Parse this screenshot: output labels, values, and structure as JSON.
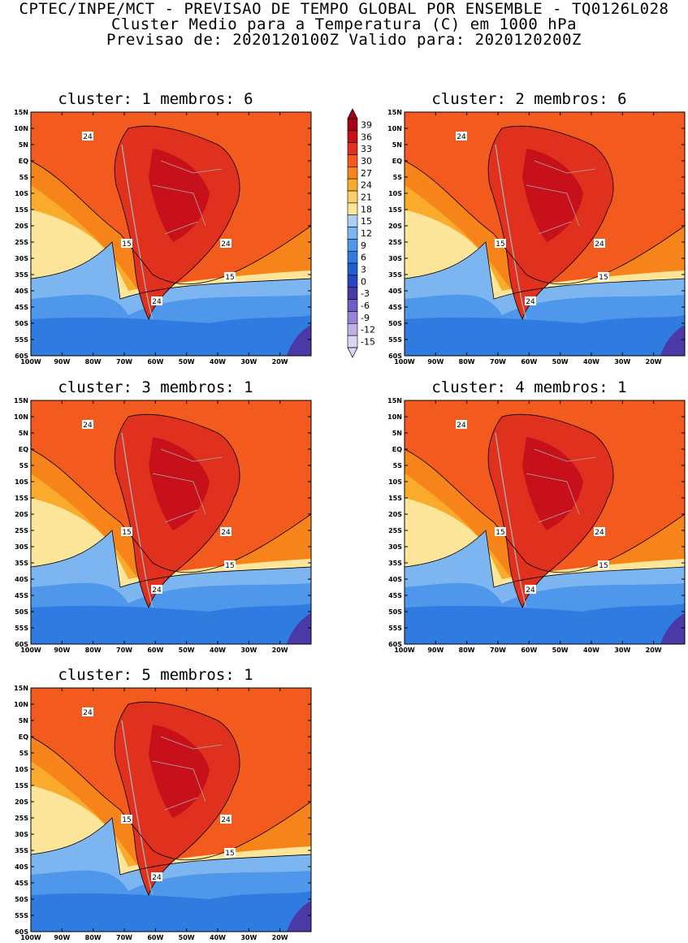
{
  "header": {
    "line1": "CPTEC/INPE/MCT - PREVISAO DE TEMPO GLOBAL POR ENSEMBLE - TQ0126L028",
    "line2": "Cluster Medio para a Temperatura (C) em 1000 hPa",
    "line3": "Previsao de: 2020120100Z   Valido para: 2020120200Z"
  },
  "panels": [
    {
      "title": "cluster: 1   membros: 6"
    },
    {
      "title": "cluster: 2   membros: 6"
    },
    {
      "title": "cluster: 3   membros: 1"
    },
    {
      "title": "cluster: 4   membros: 1"
    },
    {
      "title": "cluster: 5   membros: 1"
    }
  ],
  "axes": {
    "lat_labels": [
      "15N",
      "10N",
      "5N",
      "EQ",
      "5S",
      "10S",
      "15S",
      "20S",
      "25S",
      "30S",
      "35S",
      "40S",
      "45S",
      "50S",
      "55S",
      "60S"
    ],
    "lon_labels": [
      "100W",
      "90W",
      "80W",
      "70W",
      "60W",
      "50W",
      "40W",
      "30W",
      "20W"
    ]
  },
  "contour_labels": {
    "c24": "24",
    "c15": "15"
  },
  "legend": {
    "levels": [
      "39",
      "36",
      "33",
      "30",
      "27",
      "24",
      "21",
      "18",
      "15",
      "12",
      "9",
      "6",
      "3",
      "0",
      "-3",
      "-6",
      "-9",
      "-12",
      "-15"
    ],
    "colors": [
      "#a50015",
      "#c8101a",
      "#e0301e",
      "#f25a1e",
      "#f7841a",
      "#fbab2c",
      "#fdd067",
      "#fde699",
      "#a9cff4",
      "#7cb5f0",
      "#4f97ea",
      "#2f7be0",
      "#1f5fcf",
      "#2a45c2",
      "#4a3aa8",
      "#6f5cc8",
      "#9683d6",
      "#bfb0e6",
      "#ddd6f2"
    ]
  },
  "colors": {
    "ocean_warm": "#f25a1e",
    "ocean_orange": "#f7841a",
    "ocean_light": "#fbab2c",
    "ocean_yellow": "#fde699",
    "ocean_cool": "#7cb5f0",
    "ocean_cold": "#4f97ea",
    "ocean_colder": "#2f7be0",
    "land_hot": "#e0301e",
    "land_hotter": "#c8101a",
    "polar": "#4a3aa8",
    "border": "#aaaaaa"
  }
}
